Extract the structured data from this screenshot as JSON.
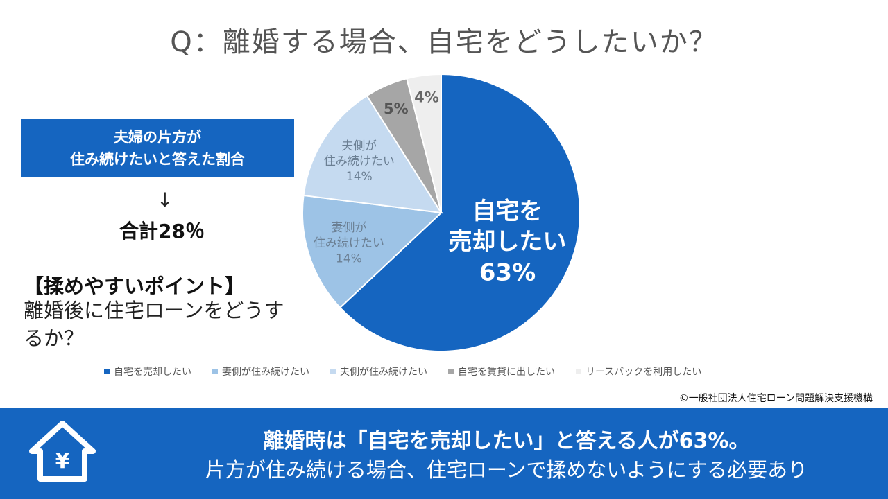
{
  "title": "Q：離婚する場合、自宅をどうしたいか？",
  "left_panel": {
    "box_line1": "夫婦の片方が",
    "box_line2": "住み続けたいと答えた割合",
    "arrow": "↓",
    "total": "合計28％",
    "point_heading": "【揉めやすいポイント】",
    "point_body": "離婚後に住宅ローンをどうするか？"
  },
  "chart_data": {
    "type": "pie",
    "start_angle_deg": 0,
    "direction": "clockwise",
    "slices": [
      {
        "legend": "自宅を売却したい",
        "label_lines": [
          "自宅を",
          "売却したい",
          "63%"
        ],
        "value": 63,
        "color": "#1565c0",
        "label_color": "#ffffff"
      },
      {
        "legend": "妻側が住み続けたい",
        "label_lines": [
          "妻側が",
          "住み続けたい",
          "14%"
        ],
        "value": 14,
        "color": "#9dc3e6",
        "label_color": "#6b7f93"
      },
      {
        "legend": "夫側が住み続けたい",
        "label_lines": [
          "夫側が",
          "住み続けたい",
          "14%"
        ],
        "value": 14,
        "color": "#c5daf0",
        "label_color": "#6b7f93"
      },
      {
        "legend": "自宅を賃貸に出したい",
        "label_lines": [
          "5%"
        ],
        "value": 5,
        "color": "#a6a6a6",
        "label_color": "#555555"
      },
      {
        "legend": "リースバックを利用したい",
        "label_lines": [
          "4%"
        ],
        "value": 4,
        "color": "#eeeeee",
        "label_color": "#666666"
      }
    ]
  },
  "copyright": "©一般社団法人住宅ローン問題解決支援機構",
  "banner": {
    "icon": "house-yen-icon",
    "yen_symbol": "¥",
    "main": "離婚時は「自宅を売却したい」と答える人が63%。",
    "sub": "片方が住み続ける場合、住宅ローンで揉めないようにする必要あり"
  }
}
